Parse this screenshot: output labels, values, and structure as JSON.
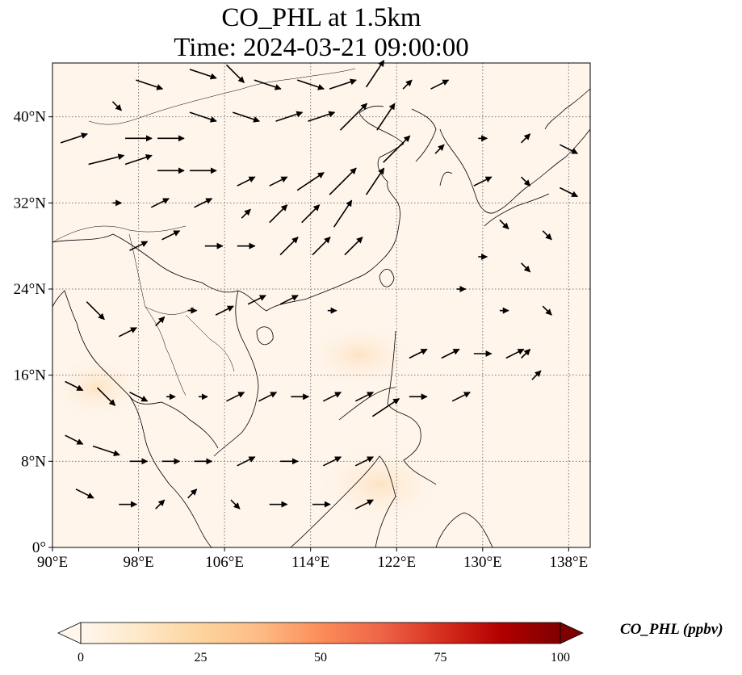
{
  "title": {
    "line1": "CO_PHL at 1.5km",
    "line2": "Time: 2024-03-21 09:00:00"
  },
  "map": {
    "projection": "PlateCarree",
    "lon_range": [
      90,
      140
    ],
    "lat_range": [
      0,
      45
    ],
    "gridlines": "dotted",
    "x_ticks": [
      {
        "value": 90,
        "label": "90°E"
      },
      {
        "value": 98,
        "label": "98°E"
      },
      {
        "value": 106,
        "label": "106°E"
      },
      {
        "value": 114,
        "label": "114°E"
      },
      {
        "value": 122,
        "label": "122°E"
      },
      {
        "value": 130,
        "label": "130°E"
      },
      {
        "value": 138,
        "label": "138°E"
      }
    ],
    "y_ticks": [
      {
        "value": 0,
        "label": "0°"
      },
      {
        "value": 8,
        "label": "8°N"
      },
      {
        "value": 16,
        "label": "16°N"
      },
      {
        "value": 24,
        "label": "24°N"
      },
      {
        "value": 32,
        "label": "32°N"
      },
      {
        "value": 40,
        "label": "40°N"
      }
    ],
    "field_color_background": "#fff5eb",
    "field_color_plume": "#fde6cc",
    "wind_vectors": [
      [
        92,
        38,
        3,
        1
      ],
      [
        95,
        36,
        4,
        1
      ],
      [
        96,
        41,
        1,
        -1
      ],
      [
        99,
        43,
        3,
        -1
      ],
      [
        104,
        44,
        3,
        -1
      ],
      [
        107,
        44,
        2,
        -2
      ],
      [
        110,
        43,
        3,
        -1
      ],
      [
        114,
        43,
        3,
        -1
      ],
      [
        117,
        43,
        3,
        1
      ],
      [
        120,
        44,
        2,
        3
      ],
      [
        123,
        43,
        1,
        1
      ],
      [
        126,
        43,
        2,
        1
      ],
      [
        98,
        38,
        3,
        0
      ],
      [
        101,
        38,
        3,
        0
      ],
      [
        104,
        40,
        3,
        -1
      ],
      [
        108,
        40,
        3,
        -1
      ],
      [
        112,
        40,
        3,
        1
      ],
      [
        115,
        40,
        3,
        1
      ],
      [
        118,
        40,
        3,
        3
      ],
      [
        121,
        40,
        2,
        3
      ],
      [
        98,
        36,
        3,
        1
      ],
      [
        101,
        35,
        3,
        0
      ],
      [
        104,
        35,
        3,
        0
      ],
      [
        108,
        34,
        2,
        1
      ],
      [
        111,
        34,
        2,
        1
      ],
      [
        114,
        34,
        3,
        2
      ],
      [
        117,
        34,
        3,
        3
      ],
      [
        120,
        34,
        2,
        3
      ],
      [
        122,
        37,
        3,
        3
      ],
      [
        96,
        32,
        1,
        0
      ],
      [
        100,
        32,
        2,
        1
      ],
      [
        104,
        32,
        2,
        1
      ],
      [
        108,
        31,
        1,
        1
      ],
      [
        111,
        31,
        2,
        2
      ],
      [
        114,
        31,
        2,
        2
      ],
      [
        117,
        31,
        2,
        3
      ],
      [
        98,
        28,
        2,
        1
      ],
      [
        101,
        29,
        2,
        1
      ],
      [
        105,
        28,
        2,
        0
      ],
      [
        108,
        28,
        2,
        0
      ],
      [
        112,
        28,
        2,
        2
      ],
      [
        115,
        28,
        2,
        2
      ],
      [
        118,
        28,
        2,
        2
      ],
      [
        94,
        22,
        2,
        -2
      ],
      [
        97,
        20,
        2,
        1
      ],
      [
        100,
        21,
        1,
        1
      ],
      [
        103,
        22,
        1,
        0
      ],
      [
        106,
        22,
        2,
        1
      ],
      [
        109,
        23,
        2,
        1
      ],
      [
        112,
        23,
        2,
        1
      ],
      [
        116,
        22,
        1,
        0
      ],
      [
        92,
        15,
        2,
        -1
      ],
      [
        95,
        14,
        2,
        -2
      ],
      [
        98,
        14,
        2,
        -1
      ],
      [
        101,
        14,
        1,
        0
      ],
      [
        104,
        14,
        1,
        0
      ],
      [
        107,
        14,
        2,
        1
      ],
      [
        110,
        14,
        2,
        1
      ],
      [
        113,
        14,
        2,
        0
      ],
      [
        116,
        14,
        2,
        1
      ],
      [
        119,
        14,
        2,
        1
      ],
      [
        121,
        13,
        3,
        2
      ],
      [
        92,
        10,
        2,
        -1
      ],
      [
        95,
        9,
        3,
        -1
      ],
      [
        98,
        8,
        2,
        0
      ],
      [
        101,
        8,
        2,
        0
      ],
      [
        104,
        8,
        2,
        0
      ],
      [
        108,
        8,
        2,
        1
      ],
      [
        112,
        8,
        2,
        0
      ],
      [
        116,
        8,
        2,
        1
      ],
      [
        119,
        8,
        2,
        1
      ],
      [
        93,
        5,
        2,
        -1
      ],
      [
        97,
        4,
        2,
        0
      ],
      [
        100,
        4,
        1,
        1
      ],
      [
        103,
        5,
        1,
        1
      ],
      [
        107,
        4,
        1,
        -1
      ],
      [
        111,
        4,
        2,
        0
      ],
      [
        115,
        4,
        2,
        0
      ],
      [
        119,
        4,
        2,
        1
      ],
      [
        124,
        18,
        2,
        1
      ],
      [
        127,
        18,
        2,
        1
      ],
      [
        130,
        18,
        2,
        0
      ],
      [
        133,
        18,
        2,
        1
      ],
      [
        124,
        14,
        2,
        0
      ],
      [
        128,
        14,
        2,
        1
      ],
      [
        134,
        18,
        1,
        1
      ],
      [
        126,
        37,
        1,
        1
      ],
      [
        130,
        38,
        1,
        0
      ],
      [
        134,
        38,
        1,
        1
      ],
      [
        138,
        37,
        2,
        -1
      ],
      [
        130,
        34,
        2,
        1
      ],
      [
        134,
        34,
        1,
        -1
      ],
      [
        138,
        33,
        2,
        -1
      ],
      [
        132,
        30,
        1,
        -1
      ],
      [
        136,
        29,
        1,
        -1
      ],
      [
        130,
        27,
        1,
        0
      ],
      [
        134,
        26,
        1,
        -1
      ],
      [
        128,
        24,
        1,
        0
      ],
      [
        132,
        22,
        1,
        0
      ],
      [
        136,
        22,
        1,
        -1
      ],
      [
        135,
        16,
        1,
        1
      ]
    ]
  },
  "colorbar": {
    "label": "CO_PHL (ppbv)",
    "min": 0,
    "max": 100,
    "extend": "both",
    "cmap": "OrRd",
    "stops": [
      "#fff7ec",
      "#fee8c8",
      "#fdd49e",
      "#fdbb84",
      "#fc8d59",
      "#ef6548",
      "#d7301f",
      "#b30000",
      "#7f0000"
    ],
    "ticks": [
      "0",
      "25",
      "50",
      "75",
      "100"
    ]
  }
}
